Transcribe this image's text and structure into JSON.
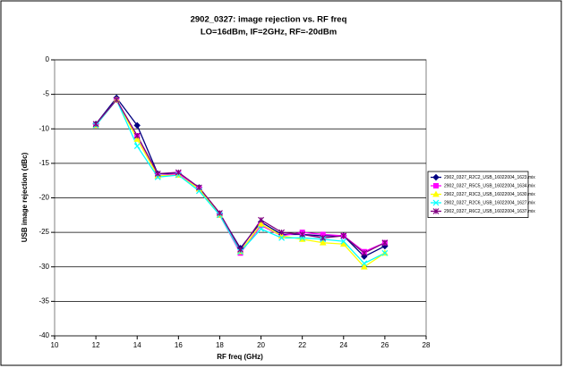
{
  "chart_data": {
    "type": "line",
    "title": "2902_0327: image rejection vs. RF freq",
    "subtitle": "LO=16dBm, IF=2GHz, RF=-20dBm",
    "x_label": "RF freq (GHz)",
    "y_label": "USB image rejection (dBc)",
    "x": [
      12,
      13,
      14,
      15,
      16,
      17,
      18,
      19,
      20,
      21,
      22,
      23,
      24,
      25,
      26
    ],
    "xlim": [
      10,
      28
    ],
    "xticks": [
      10,
      12,
      14,
      16,
      18,
      20,
      22,
      24,
      26,
      28
    ],
    "ylim": [
      -40,
      0
    ],
    "yticks": [
      0,
      -5,
      -10,
      -15,
      -20,
      -25,
      -30,
      -35,
      -40
    ],
    "grid": true,
    "legend": "right",
    "series": [
      {
        "name": "2902_0327_R2C2_USB_16022004_1623.mix",
        "color": "#000080",
        "marker": "diamond",
        "values": [
          -9.3,
          -5.5,
          -9.5,
          -16.5,
          -16.5,
          -18.5,
          -22.3,
          -27.3,
          -23.5,
          -25.3,
          -25.3,
          -25.5,
          -25.5,
          -28.5,
          -27
        ]
      },
      {
        "name": "2902_0327_R5C5_USB_16022004_1634.mix",
        "color": "#ff00ff",
        "marker": "square",
        "values": [
          -9.5,
          -5.8,
          -11,
          -16.8,
          -16.5,
          -18.7,
          -22.5,
          -28,
          -24,
          -25.5,
          -25,
          -25.3,
          -25.5,
          -27.8,
          -26.5
        ]
      },
      {
        "name": "2902_0327_R3C3_USB_16022004_1630.mix",
        "color": "#ffff00",
        "marker": "triangle",
        "values": [
          -9.5,
          -5.8,
          -11.5,
          -16.8,
          -16.7,
          -18.7,
          -22.5,
          -27.8,
          -23.8,
          -25.5,
          -26,
          -26.5,
          -26.7,
          -30,
          -28
        ]
      },
      {
        "name": "2902_0327_R2C6_USB_16022004_1627.mix",
        "color": "#00ffff",
        "marker": "x",
        "values": [
          -9.5,
          -5.8,
          -12.5,
          -17,
          -16.7,
          -19,
          -22.5,
          -27.8,
          -24.5,
          -25.8,
          -25.8,
          -26,
          -26.3,
          -29.5,
          -28
        ]
      },
      {
        "name": "2902_0327_R6C2_USB_16022004_1637.mix",
        "color": "#800080",
        "marker": "star",
        "values": [
          -9.3,
          -5.8,
          -11,
          -16.5,
          -16.3,
          -18.5,
          -22.2,
          -27.5,
          -23.2,
          -25,
          -25.3,
          -25.8,
          -25.5,
          -28,
          -26.5
        ]
      }
    ]
  }
}
